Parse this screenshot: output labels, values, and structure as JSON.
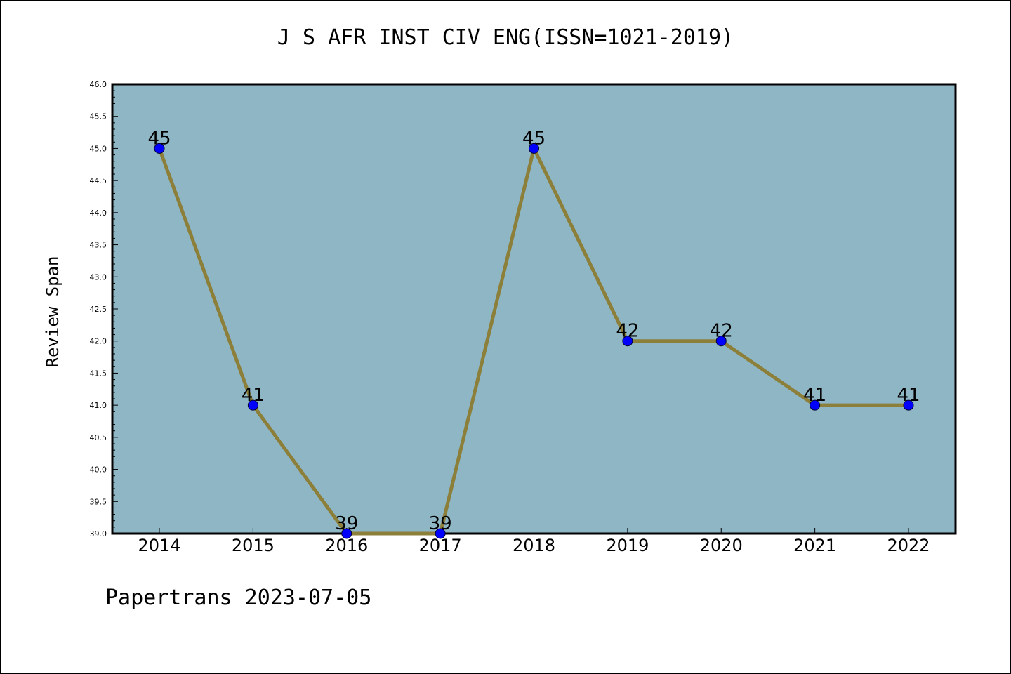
{
  "chart_data": {
    "type": "line",
    "title": "J S AFR INST CIV ENG(ISSN=1021-2019)",
    "ylabel": "Review Span",
    "xlabel": "",
    "categories": [
      "2014",
      "2015",
      "2016",
      "2017",
      "2018",
      "2019",
      "2020",
      "2021",
      "2022"
    ],
    "series": [
      {
        "values": [
          45,
          41,
          39,
          39,
          45,
          42,
          42,
          41,
          41
        ]
      }
    ],
    "data_labels": [
      "45",
      "41",
      "39",
      "39",
      "45",
      "42",
      "42",
      "41",
      "41"
    ],
    "ylim": [
      39.0,
      46.0
    ],
    "yticks": [
      "39.0",
      "39.5",
      "40.0",
      "40.5",
      "41.0",
      "41.5",
      "42.0",
      "42.5",
      "43.0",
      "43.5",
      "44.0",
      "44.5",
      "45.0",
      "45.5",
      "46.0"
    ],
    "grid": false,
    "colors": {
      "plot_background": "#8fb6c5",
      "line": "#8c7f3a",
      "marker": "#0000ff"
    }
  },
  "footer": "Papertrans 2023-07-05"
}
